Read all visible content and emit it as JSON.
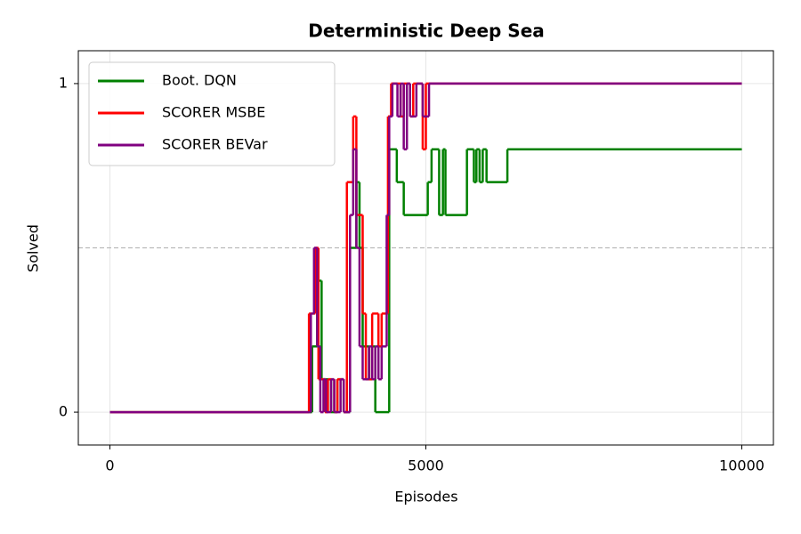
{
  "chart_data": {
    "type": "line",
    "title": "Deterministic Deep Sea",
    "xlabel": "Episodes",
    "ylabel": "Solved",
    "xlim": [
      -500,
      10500
    ],
    "ylim": [
      -0.1,
      1.1
    ],
    "xticks": [
      0,
      5000,
      10000
    ],
    "yticks": [
      0,
      1
    ],
    "grid": true,
    "hline": 0.5,
    "legend": "upper left",
    "drawstyle": "steps-post",
    "series": [
      {
        "name": "Boot. DQN",
        "color": "#008000",
        "x": [
          0,
          3150,
          3200,
          3280,
          3350,
          3500,
          3600,
          3700,
          3800,
          3900,
          3950,
          4000,
          4100,
          4150,
          4200,
          4420,
          4540,
          4650,
          5030,
          5090,
          5210,
          5270,
          5310,
          5650,
          5760,
          5800,
          5850,
          5900,
          5960,
          6290,
          10000
        ],
        "values": [
          0,
          0,
          0.2,
          0.4,
          0.1,
          0,
          0.1,
          0,
          0.5,
          0.7,
          0.5,
          0.2,
          0.1,
          0.2,
          0,
          0.8,
          0.7,
          0.6,
          0.7,
          0.8,
          0.6,
          0.8,
          0.6,
          0.8,
          0.7,
          0.8,
          0.7,
          0.8,
          0.7,
          0.8,
          0.8
        ]
      },
      {
        "name": "SCORER MSBE",
        "color": "#ff0000",
        "x": [
          0,
          3150,
          3250,
          3300,
          3400,
          3450,
          3550,
          3600,
          3700,
          3750,
          3850,
          3900,
          4000,
          4050,
          4150,
          4250,
          4300,
          4400,
          4450,
          4600,
          4650,
          4750,
          4800,
          4950,
          5000,
          10000
        ],
        "values": [
          0,
          0.3,
          0.5,
          0.1,
          0,
          0.1,
          0,
          0.1,
          0,
          0.7,
          0.9,
          0.6,
          0.3,
          0.1,
          0.3,
          0.2,
          0.3,
          0.9,
          1,
          0.9,
          1,
          0.9,
          1,
          0.8,
          1,
          1
        ]
      },
      {
        "name": "SCORER BEVar",
        "color": "#800080",
        "x": [
          0,
          3150,
          3180,
          3230,
          3280,
          3330,
          3380,
          3420,
          3500,
          3550,
          3650,
          3700,
          3800,
          3850,
          3900,
          3950,
          4000,
          4100,
          4150,
          4200,
          4250,
          4300,
          4380,
          4420,
          4470,
          4550,
          4600,
          4650,
          4700,
          4750,
          4850,
          4950,
          5050,
          10000
        ],
        "values": [
          0,
          0,
          0.3,
          0.5,
          0.2,
          0,
          0.1,
          0,
          0.1,
          0,
          0.1,
          0,
          0.6,
          0.8,
          0.5,
          0.2,
          0.1,
          0.2,
          0.1,
          0.2,
          0.1,
          0.2,
          0.6,
          0.9,
          1,
          0.9,
          1,
          0.8,
          1,
          0.9,
          1,
          0.9,
          1,
          1
        ]
      }
    ]
  }
}
